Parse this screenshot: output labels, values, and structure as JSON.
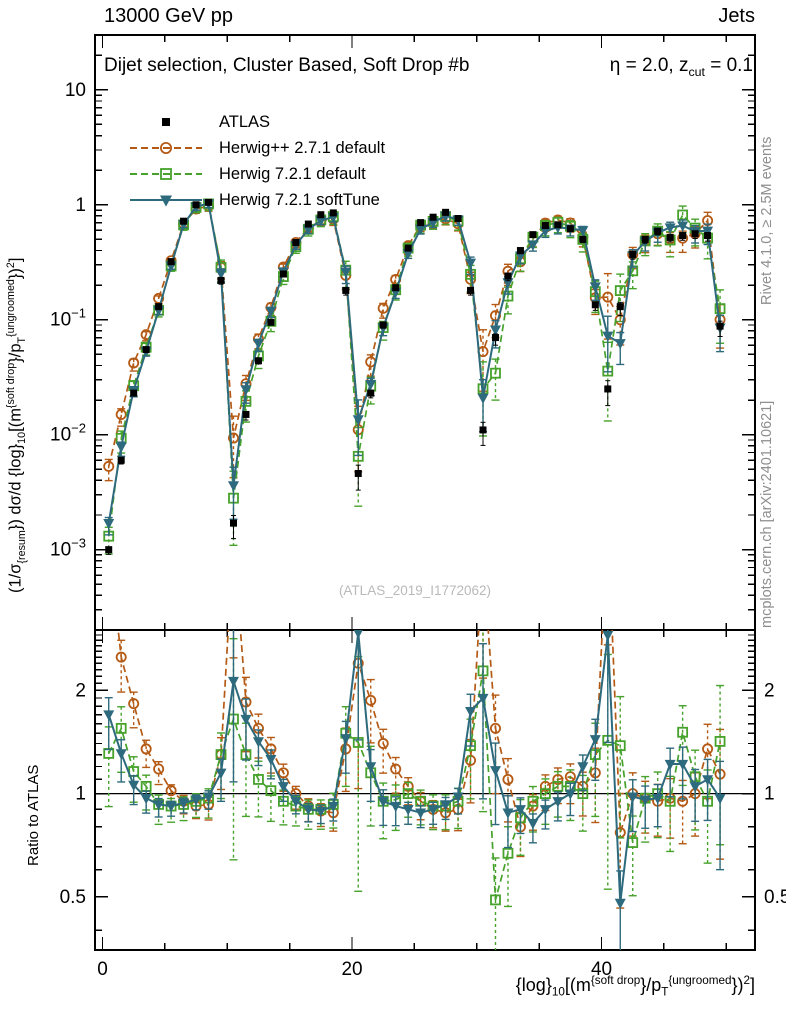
{
  "header": {
    "left": "13000 GeV pp",
    "right": "Jets"
  },
  "panel_title": {
    "left": "Dijet selection, Cluster Based, Soft Drop #b",
    "right_rich": [
      {
        "t": "η = 2.0, z"
      },
      {
        "t": "cut",
        "sub": true
      },
      {
        "t": " = 0.1"
      }
    ]
  },
  "watermark": "(ATLAS_2019_I1772062)",
  "side_notes": {
    "top": "Rivet 4.1.0, ≥ 2.5M events",
    "bottom": "mcplots.cern.ch [arXiv:2401.10621]"
  },
  "axes": {
    "ratio_label": "Ratio to ATLAS",
    "y_label_rich": [
      {
        "t": "(1/σ"
      },
      {
        "t": "{resum",
        "sub": true
      },
      {
        "t": "}) dσ/d {log}"
      },
      {
        "t": "10",
        "sub": true
      },
      {
        "t": "[(m"
      },
      {
        "t": "{soft drop",
        "sup": true
      },
      {
        "t": "}/p"
      },
      {
        "t": "T",
        "sub": true
      },
      {
        "t": "{ungroomed",
        "sup": true
      },
      {
        "t": "})"
      },
      {
        "t": "2",
        "sup": true
      },
      {
        "t": "]"
      }
    ],
    "x_label_rich": [
      {
        "t": "{log}"
      },
      {
        "t": "10",
        "sub": true
      },
      {
        "t": "[(m"
      },
      {
        "t": "{soft drop",
        "sup": true
      },
      {
        "t": "}/p"
      },
      {
        "t": "T",
        "sub": true
      },
      {
        "t": "{ungroomed",
        "sup": true
      },
      {
        "t": "})"
      },
      {
        "t": "2",
        "sup": true
      },
      {
        "t": "]"
      }
    ],
    "main_y_ticks": [
      {
        "v": 10,
        "t": "10"
      },
      {
        "v": 1,
        "t": "1"
      },
      {
        "v": 0.1,
        "t": "10",
        "e": "−1"
      },
      {
        "v": 0.01,
        "t": "10",
        "e": "−2"
      },
      {
        "v": 0.001,
        "t": "10",
        "e": "−3"
      }
    ],
    "ratio_ticks": [
      {
        "v": 2,
        "t": "2"
      },
      {
        "v": 1,
        "t": "1"
      },
      {
        "v": 0.5,
        "t": "0.5"
      }
    ],
    "x_ticks_major": [
      0,
      20,
      40
    ],
    "x_minor_step": 5,
    "xlim": [
      -0.6,
      52.3
    ],
    "ylim_main": [
      0.0002,
      30
    ],
    "ylim_ratio": [
      0.35,
      3.0
    ]
  },
  "chart_data": {
    "type": "line",
    "title": "Dijet selection, Cluster Based, Soft Drop #bη = 2.0, z_cut = 0.1",
    "x_label_text": "log10[(m^{soft drop}/p_T^{ungroomed})^2]",
    "y_label_text": "(1/σ_resum) dσ/d log10[(m^{soft drop}/p_T^{ungroomed})^2]",
    "x": [
      0.5,
      1.5,
      2.5,
      3.5,
      4.5,
      5.5,
      6.5,
      7.5,
      8.5,
      9.5,
      10.5,
      11.5,
      12.5,
      13.5,
      14.5,
      15.5,
      16.5,
      17.5,
      18.5,
      19.5,
      20.5,
      21.5,
      22.5,
      23.5,
      24.5,
      25.5,
      26.5,
      27.5,
      28.5,
      29.5,
      30.5,
      31.5,
      32.5,
      33.5,
      34.5,
      35.5,
      36.5,
      37.5,
      38.5,
      39.5,
      40.5,
      41.5,
      42.5,
      43.5,
      44.5,
      45.5,
      46.5,
      47.5,
      48.5,
      49.5
    ],
    "atlas": {
      "label": "ATLAS",
      "color": "#000000",
      "marker": "filled-square",
      "line": "none",
      "err_scale": 0.3,
      "values": [
        0.001,
        0.006,
        0.023,
        0.055,
        0.13,
        0.32,
        0.72,
        1.0,
        1.05,
        0.22,
        0.0017,
        0.015,
        0.044,
        0.095,
        0.25,
        0.47,
        0.68,
        0.82,
        0.85,
        0.18,
        0.0046,
        0.023,
        0.09,
        0.19,
        0.42,
        0.7,
        0.78,
        0.86,
        0.76,
        0.18,
        0.011,
        0.07,
        0.24,
        0.4,
        0.55,
        0.66,
        0.67,
        0.62,
        0.5,
        0.135,
        0.025,
        0.13,
        0.37,
        0.5,
        0.59,
        0.52,
        0.54,
        0.56,
        0.54,
        0.088
      ]
    },
    "series": [
      {
        "label": "Herwig++ 2.7.1 default",
        "color": "#b45a15",
        "marker": "open-circle",
        "line": "dashed",
        "err_scale": 1.0,
        "ratio_to_atlas": [
          5.3,
          2.5,
          1.83,
          1.35,
          1.18,
          1.02,
          0.95,
          0.92,
          0.93,
          1.3,
          5.5,
          1.85,
          1.55,
          1.35,
          1.15,
          1.0,
          0.92,
          0.89,
          0.88,
          1.35,
          2.4,
          1.87,
          1.4,
          1.18,
          1.05,
          0.95,
          0.9,
          0.88,
          0.9,
          1.25,
          4.8,
          1.55,
          1.1,
          0.8,
          0.92,
          1.05,
          1.1,
          1.12,
          1.05,
          1.15,
          6.3,
          0.77,
          1.0,
          0.97,
          0.95,
          0.97,
          0.95,
          1.0,
          1.35,
          1.14
        ]
      },
      {
        "label": "Herwig 7.2.1 default",
        "color": "#46a22b",
        "marker": "open-square",
        "line": "dashed",
        "err_scale": 1.3,
        "ratio_to_atlas": [
          1.31,
          1.55,
          1.16,
          1.05,
          0.93,
          0.92,
          0.93,
          0.95,
          0.97,
          1.3,
          1.65,
          1.3,
          1.1,
          1.02,
          0.95,
          0.92,
          0.9,
          0.9,
          0.93,
          1.5,
          1.41,
          1.15,
          0.95,
          0.96,
          1.0,
          0.95,
          0.92,
          0.92,
          0.95,
          1.38,
          2.28,
          0.49,
          0.67,
          0.85,
          0.95,
          1.0,
          1.05,
          1.05,
          1.0,
          1.3,
          1.43,
          1.38,
          0.72,
          0.97,
          1.0,
          0.95,
          1.51,
          1.12,
          0.95,
          1.42
        ]
      },
      {
        "label": "Herwig 7.2.1 softTune",
        "color": "#2e6a7d",
        "marker": "filled-triangle-down",
        "line": "solid",
        "err_scale": 0.8,
        "ratio_to_atlas": [
          1.7,
          1.31,
          1.06,
          0.97,
          0.93,
          0.92,
          0.94,
          0.96,
          0.98,
          1.15,
          2.13,
          1.65,
          1.42,
          1.26,
          1.05,
          0.95,
          0.9,
          0.89,
          0.92,
          1.45,
          2.95,
          1.2,
          0.95,
          0.92,
          0.9,
          0.88,
          0.9,
          0.93,
          0.98,
          1.74,
          1.9,
          1.17,
          0.88,
          0.9,
          0.82,
          0.9,
          0.95,
          1.0,
          1.2,
          1.44,
          2.9,
          0.48,
          0.98,
          0.96,
          0.97,
          1.22,
          1.22,
          1.05,
          1.1,
          0.97
        ]
      }
    ],
    "mc_rel_err": [
      0.15,
      0.12,
      0.08,
      0.06,
      0.05,
      0.04,
      0.04,
      0.04,
      0.05,
      0.12,
      0.55,
      0.18,
      0.1,
      0.08,
      0.06,
      0.05,
      0.05,
      0.05,
      0.06,
      0.15,
      0.6,
      0.15,
      0.1,
      0.08,
      0.06,
      0.06,
      0.06,
      0.06,
      0.07,
      0.15,
      0.55,
      0.25,
      0.15,
      0.1,
      0.08,
      0.08,
      0.08,
      0.09,
      0.1,
      0.18,
      0.6,
      0.3,
      0.15,
      0.12,
      0.12,
      0.14,
      0.15,
      0.15,
      0.18,
      0.35
    ],
    "ratio_reference": 1,
    "legend_position": "top-left",
    "grid": false
  }
}
